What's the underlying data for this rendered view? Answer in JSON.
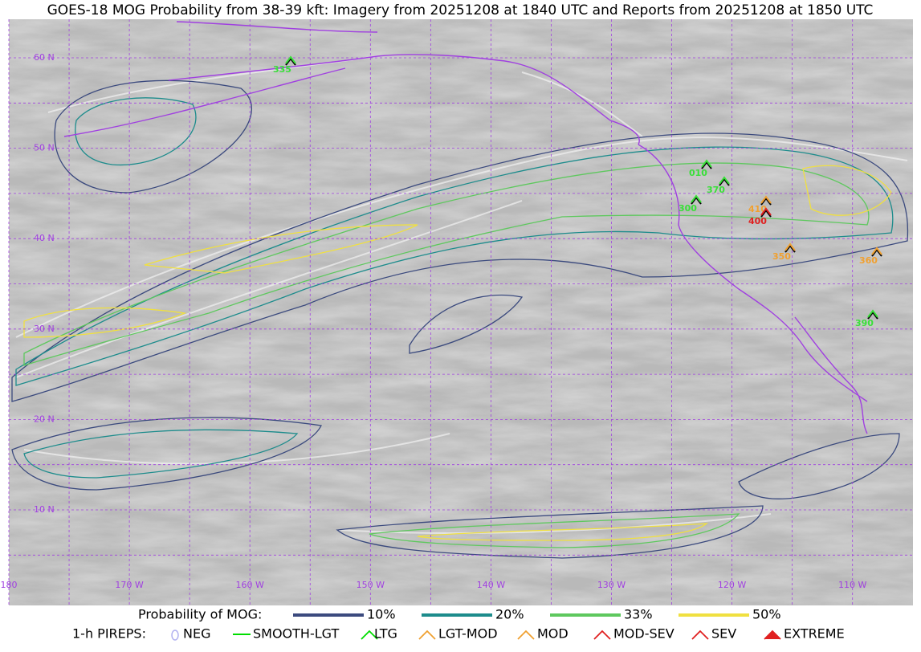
{
  "title": "GOES-18 MOG Probability from 38-39 kft: Imagery from 20251208 at 1840 UTC and Reports from 20251208 at 1850 UTC",
  "map": {
    "lat_labels": [
      "60 N",
      "50 N",
      "40 N",
      "30 N",
      "20 N",
      "10 N"
    ],
    "lon_labels": [
      "180",
      "170 W",
      "160 W",
      "150 W",
      "140 W",
      "130 W",
      "120 W",
      "110 W"
    ],
    "report_labels": [
      "335",
      "010",
      "370",
      "300",
      "410",
      "400",
      "350",
      "360",
      "390"
    ]
  },
  "legend": {
    "probability": {
      "title": "Probability of MOG:",
      "items": [
        "10%",
        "20%",
        "33%",
        "50%"
      ]
    },
    "pireps": {
      "title": "1-h PIREPS:",
      "items": [
        "NEG",
        "SMOOTH-LGT",
        "LTG",
        "LGT-MOD",
        "MOD",
        "MOD-SEV",
        "SEV",
        "EXTREME"
      ]
    }
  }
}
